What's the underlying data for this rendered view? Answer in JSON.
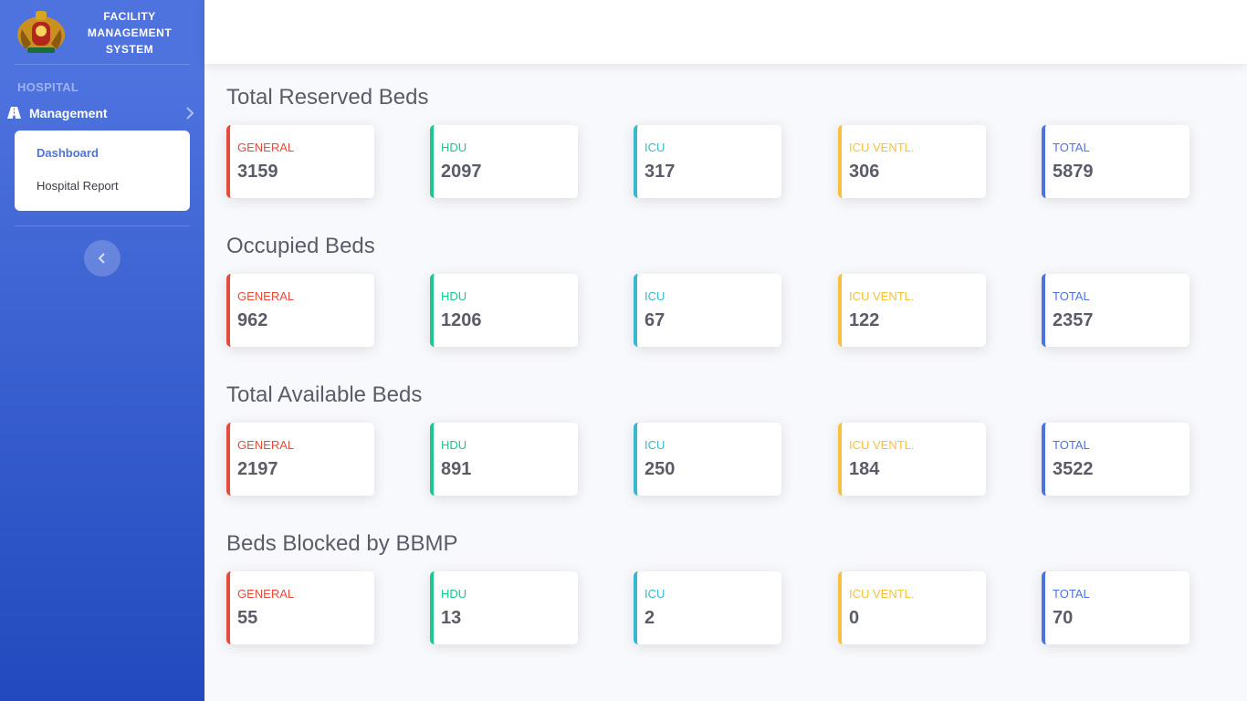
{
  "brand": {
    "title": "FACILITY MANAGEMENT SYSTEM",
    "logo_icon": "karnataka-emblem-icon"
  },
  "sidebar": {
    "heading": "HOSPITAL",
    "nav": {
      "label": "Management",
      "icon": "road-icon"
    },
    "submenu": [
      {
        "label": "Dashboard",
        "active": true
      },
      {
        "label": "Hospital Report",
        "active": false
      }
    ],
    "toggle_icon": "chevron-left-icon"
  },
  "colors": {
    "sidebar_start": "#4e73df",
    "sidebar_end": "#224abe",
    "general": "#e74a3b",
    "hdu": "#1cc88a",
    "icu": "#36b9cc",
    "icu_vent": "#f6c23e",
    "total": "#4e73df"
  },
  "sections": [
    {
      "title": "Total Reserved Beds",
      "cards": [
        {
          "label": "GENERAL",
          "value": "3159"
        },
        {
          "label": "HDU",
          "value": "2097"
        },
        {
          "label": "ICU",
          "value": "317"
        },
        {
          "label": "ICU VENTL.",
          "value": "306"
        },
        {
          "label": "TOTAL",
          "value": "5879"
        }
      ]
    },
    {
      "title": "Occupied Beds",
      "cards": [
        {
          "label": "GENERAL",
          "value": "962"
        },
        {
          "label": "HDU",
          "value": "1206"
        },
        {
          "label": "ICU",
          "value": "67"
        },
        {
          "label": "ICU VENTL.",
          "value": "122"
        },
        {
          "label": "TOTAL",
          "value": "2357"
        }
      ]
    },
    {
      "title": "Total Available Beds",
      "cards": [
        {
          "label": "GENERAL",
          "value": "2197"
        },
        {
          "label": "HDU",
          "value": "891"
        },
        {
          "label": "ICU",
          "value": "250"
        },
        {
          "label": "ICU VENTL.",
          "value": "184"
        },
        {
          "label": "TOTAL",
          "value": "3522"
        }
      ]
    },
    {
      "title": "Beds Blocked by BBMP",
      "cards": [
        {
          "label": "GENERAL",
          "value": "55"
        },
        {
          "label": "HDU",
          "value": "13"
        },
        {
          "label": "ICU",
          "value": "2"
        },
        {
          "label": "ICU VENTL.",
          "value": "0"
        },
        {
          "label": "TOTAL",
          "value": "70"
        }
      ]
    }
  ]
}
